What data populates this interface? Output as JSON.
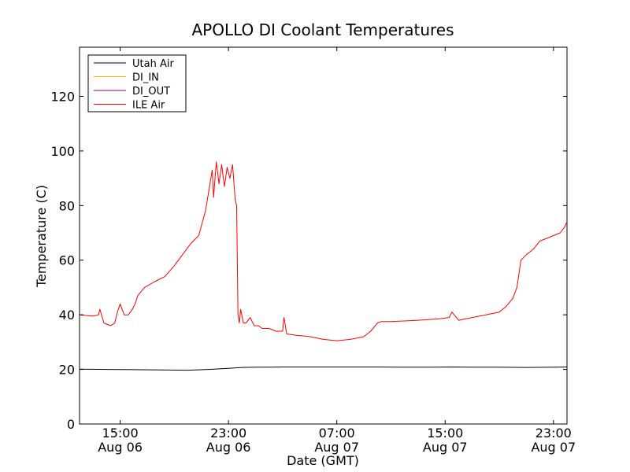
{
  "chart_data": {
    "type": "line",
    "title": "APOLLO DI Coolant Temperatures",
    "xlabel": "Date (GMT)",
    "ylabel": "Temperature (C)",
    "ylim": [
      0,
      138
    ],
    "xlim_hours": [
      12,
      48
    ],
    "yticks": [
      0,
      20,
      40,
      60,
      80,
      100,
      120
    ],
    "xticks": [
      {
        "hour": 15,
        "time": "15:00",
        "date": "Aug 06"
      },
      {
        "hour": 23,
        "time": "23:00",
        "date": "Aug 06"
      },
      {
        "hour": 31,
        "time": "07:00",
        "date": "Aug 07"
      },
      {
        "hour": 39,
        "time": "15:00",
        "date": "Aug 07"
      },
      {
        "hour": 47,
        "time": "23:00",
        "date": "Aug 07"
      }
    ],
    "legend_position": "top-left",
    "series": [
      {
        "name": "Utah Air",
        "color": "#000000",
        "x": [
          12,
          14,
          16,
          18,
          20,
          21.5,
          23,
          24,
          25,
          26,
          27,
          28,
          30,
          32,
          34,
          36,
          38,
          39.5,
          41,
          43,
          45,
          47,
          48
        ],
        "y": [
          20.1,
          20.0,
          19.9,
          19.8,
          19.7,
          20.0,
          20.4,
          20.7,
          20.8,
          20.8,
          20.9,
          20.9,
          20.9,
          20.9,
          20.9,
          20.8,
          20.8,
          20.9,
          20.8,
          20.8,
          20.7,
          20.8,
          20.9
        ]
      },
      {
        "name": "DI_IN",
        "color": "#ffa500",
        "x": [],
        "y": []
      },
      {
        "name": "DI_OUT",
        "color": "#800080",
        "x": [],
        "y": []
      },
      {
        "name": "ILE Air",
        "color": "#ff0000",
        "x": [
          12,
          13,
          13.4,
          13.5,
          13.8,
          14.3,
          14.6,
          14.8,
          15,
          15.3,
          15.6,
          15.9,
          16.1,
          16.3,
          16.8,
          17.5,
          18.3,
          19,
          19.6,
          20.2,
          20.8,
          21.3,
          21.6,
          21.8,
          21.9,
          22.1,
          22.3,
          22.5,
          22.7,
          22.9,
          23.1,
          23.3,
          23.5,
          23.6,
          23.7,
          23.8,
          23.9,
          24.1,
          24.3,
          24.6,
          24.9,
          25.2,
          25.5,
          26,
          26.5,
          27,
          27.1,
          27.3,
          28,
          29,
          30,
          31,
          32,
          32.5,
          33,
          33.5,
          34,
          34.3,
          35,
          37,
          38.5,
          39.3,
          39.5,
          40,
          41,
          42,
          43,
          43.5,
          44,
          44.3,
          44.6,
          45,
          45.5,
          46,
          46.5,
          47,
          47.5,
          47.8,
          48
        ],
        "y": [
          40,
          39.5,
          40,
          42,
          37,
          36,
          37,
          41,
          44,
          40,
          40,
          42,
          44,
          47,
          50,
          52,
          54,
          58,
          62,
          66,
          69,
          78,
          87,
          93,
          83,
          96,
          88,
          95,
          87,
          94,
          90,
          95,
          82,
          80,
          40,
          37,
          42,
          37,
          37,
          39,
          36,
          36,
          35,
          35,
          34,
          34,
          39,
          33,
          32.5,
          32,
          31,
          30.5,
          31,
          31.5,
          32,
          34,
          37,
          37.5,
          37.5,
          38,
          38.5,
          39,
          41,
          38,
          39,
          40,
          41,
          43,
          46,
          50,
          60,
          62,
          64,
          67,
          68,
          69,
          70,
          72,
          74
        ]
      }
    ]
  }
}
